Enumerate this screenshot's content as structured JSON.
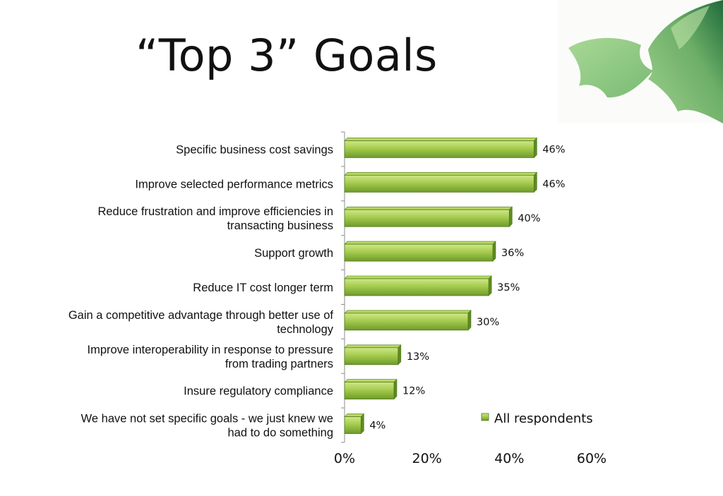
{
  "slide": {
    "title": "“Top 3” Goals"
  },
  "chart_data": {
    "type": "bar",
    "orientation": "horizontal",
    "categories": [
      [
        "Specific business cost savings"
      ],
      [
        "Improve selected performance metrics"
      ],
      [
        "Reduce frustration and improve efficiencies in",
        "transacting business"
      ],
      [
        "Support growth"
      ],
      [
        "Reduce IT cost longer term"
      ],
      [
        "Gain a competitive advantage through better use of",
        "technology"
      ],
      [
        "Improve interoperability in response to pressure",
        "from trading partners"
      ],
      [
        "Insure regulatory compliance"
      ],
      [
        "We have not set specific goals - we just knew we",
        "had to do something"
      ]
    ],
    "series": [
      {
        "name": "All respondents",
        "values": [
          46,
          46,
          40,
          36,
          35,
          30,
          13,
          12,
          4
        ],
        "data_labels": [
          "46%",
          "46%",
          "40%",
          "36%",
          "35%",
          "30%",
          "13%",
          "12%",
          "4%"
        ]
      }
    ],
    "x_ticks": [
      "0%",
      "20%",
      "40%",
      "60%"
    ],
    "xlim": [
      0,
      60
    ],
    "legend_position": "bottom-right",
    "grid": false,
    "colors": {
      "bar_light": "#b7d95e",
      "bar_mid": "#8db83a",
      "bar_dark": "#5e8a22",
      "bar_edge": "#4f7a1c",
      "axis": "#8c8c8c"
    }
  },
  "decoration": {
    "leaf_colors": [
      "#8fc97e",
      "#6fb069",
      "#2e7d44"
    ]
  }
}
